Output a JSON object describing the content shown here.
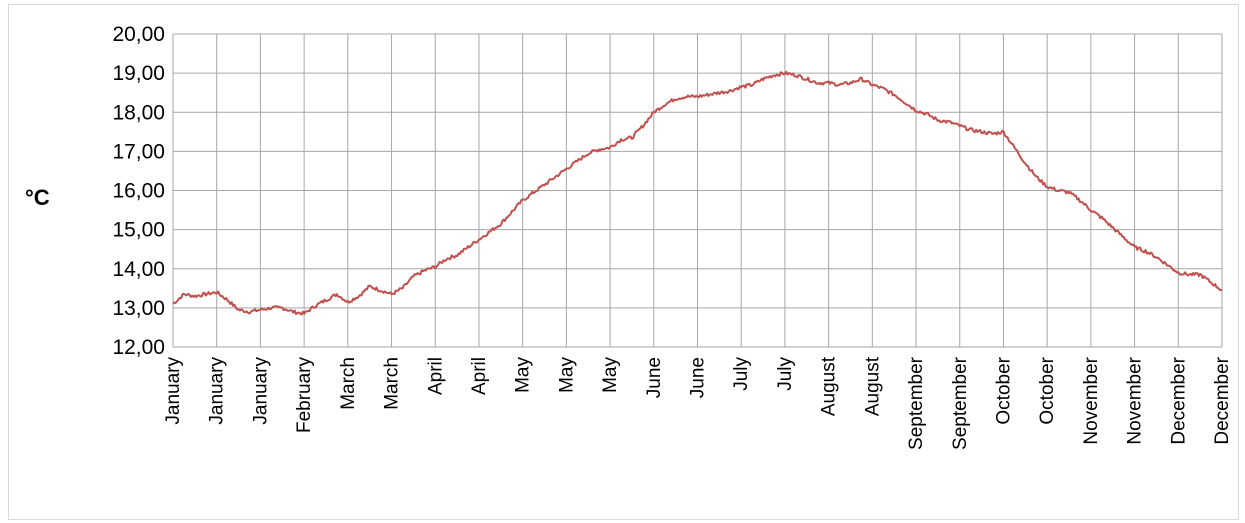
{
  "chart_data": {
    "type": "line",
    "title": "",
    "xlabel": "",
    "ylabel": "°C",
    "ylim": [
      12,
      20
    ],
    "y_ticks": [
      "12,00",
      "13,00",
      "14,00",
      "15,00",
      "16,00",
      "17,00",
      "18,00",
      "19,00",
      "20,00"
    ],
    "x_ticks": [
      "January",
      "January",
      "January",
      "February",
      "March",
      "March",
      "April",
      "April",
      "May",
      "May",
      "May",
      "June",
      "June",
      "July",
      "July",
      "August",
      "August",
      "September",
      "September",
      "October",
      "October",
      "November",
      "November",
      "December",
      "December"
    ],
    "grid": true,
    "legend": "none",
    "line_color": "#c0504d",
    "series": [
      {
        "x": [
          0,
          0.25,
          0.5,
          0.75,
          1,
          1.25,
          1.5,
          1.75,
          2,
          2.25,
          2.5,
          2.75,
          3,
          3.25,
          3.5,
          3.75,
          4,
          4.25,
          4.5,
          4.75,
          5,
          5.25,
          5.5,
          5.75,
          6,
          6.25,
          6.5,
          6.75,
          7,
          7.25,
          7.5,
          7.75,
          8,
          8.25,
          8.5,
          8.75,
          9,
          9.25,
          9.5,
          9.75,
          10,
          10.25,
          10.5,
          10.75,
          11,
          11.25,
          11.5,
          11.75,
          12,
          12.25,
          12.5,
          12.75,
          13,
          13.25,
          13.5,
          13.75,
          14,
          14.25,
          14.5,
          14.75,
          15,
          15.25,
          15.5,
          15.75,
          16,
          16.25,
          16.5,
          16.75,
          17,
          17.25,
          17.5,
          17.75,
          18,
          18.25,
          18.5,
          18.75,
          19,
          19.25,
          19.5,
          19.75,
          20,
          20.25,
          20.5,
          20.75,
          21,
          21.25,
          21.5,
          21.75,
          22,
          22.25,
          22.5,
          22.75,
          23,
          23.25,
          23.5,
          23.75,
          24
        ],
        "values": [
          13.1,
          13.35,
          13.3,
          13.35,
          13.4,
          13.2,
          12.95,
          12.9,
          12.95,
          13.0,
          13.0,
          12.9,
          12.85,
          13.05,
          13.2,
          13.35,
          13.15,
          13.3,
          13.55,
          13.45,
          13.35,
          13.5,
          13.8,
          13.95,
          14.05,
          14.25,
          14.35,
          14.55,
          14.75,
          14.95,
          15.15,
          15.45,
          15.75,
          15.95,
          16.15,
          16.35,
          16.55,
          16.75,
          16.95,
          17.05,
          17.1,
          17.3,
          17.35,
          17.65,
          18.0,
          18.2,
          18.35,
          18.4,
          18.4,
          18.45,
          18.5,
          18.55,
          18.65,
          18.7,
          18.85,
          18.95,
          19.0,
          18.95,
          18.85,
          18.75,
          18.75,
          18.7,
          18.75,
          18.85,
          18.7,
          18.6,
          18.45,
          18.25,
          18.05,
          17.95,
          17.8,
          17.75,
          17.65,
          17.55,
          17.5,
          17.45,
          17.5,
          17.1,
          16.7,
          16.35,
          16.1,
          16.0,
          15.95,
          15.75,
          15.5,
          15.3,
          15.05,
          14.8,
          14.55,
          14.45,
          14.3,
          14.1,
          13.9,
          13.85,
          13.85,
          13.65,
          13.45
        ]
      }
    ]
  }
}
